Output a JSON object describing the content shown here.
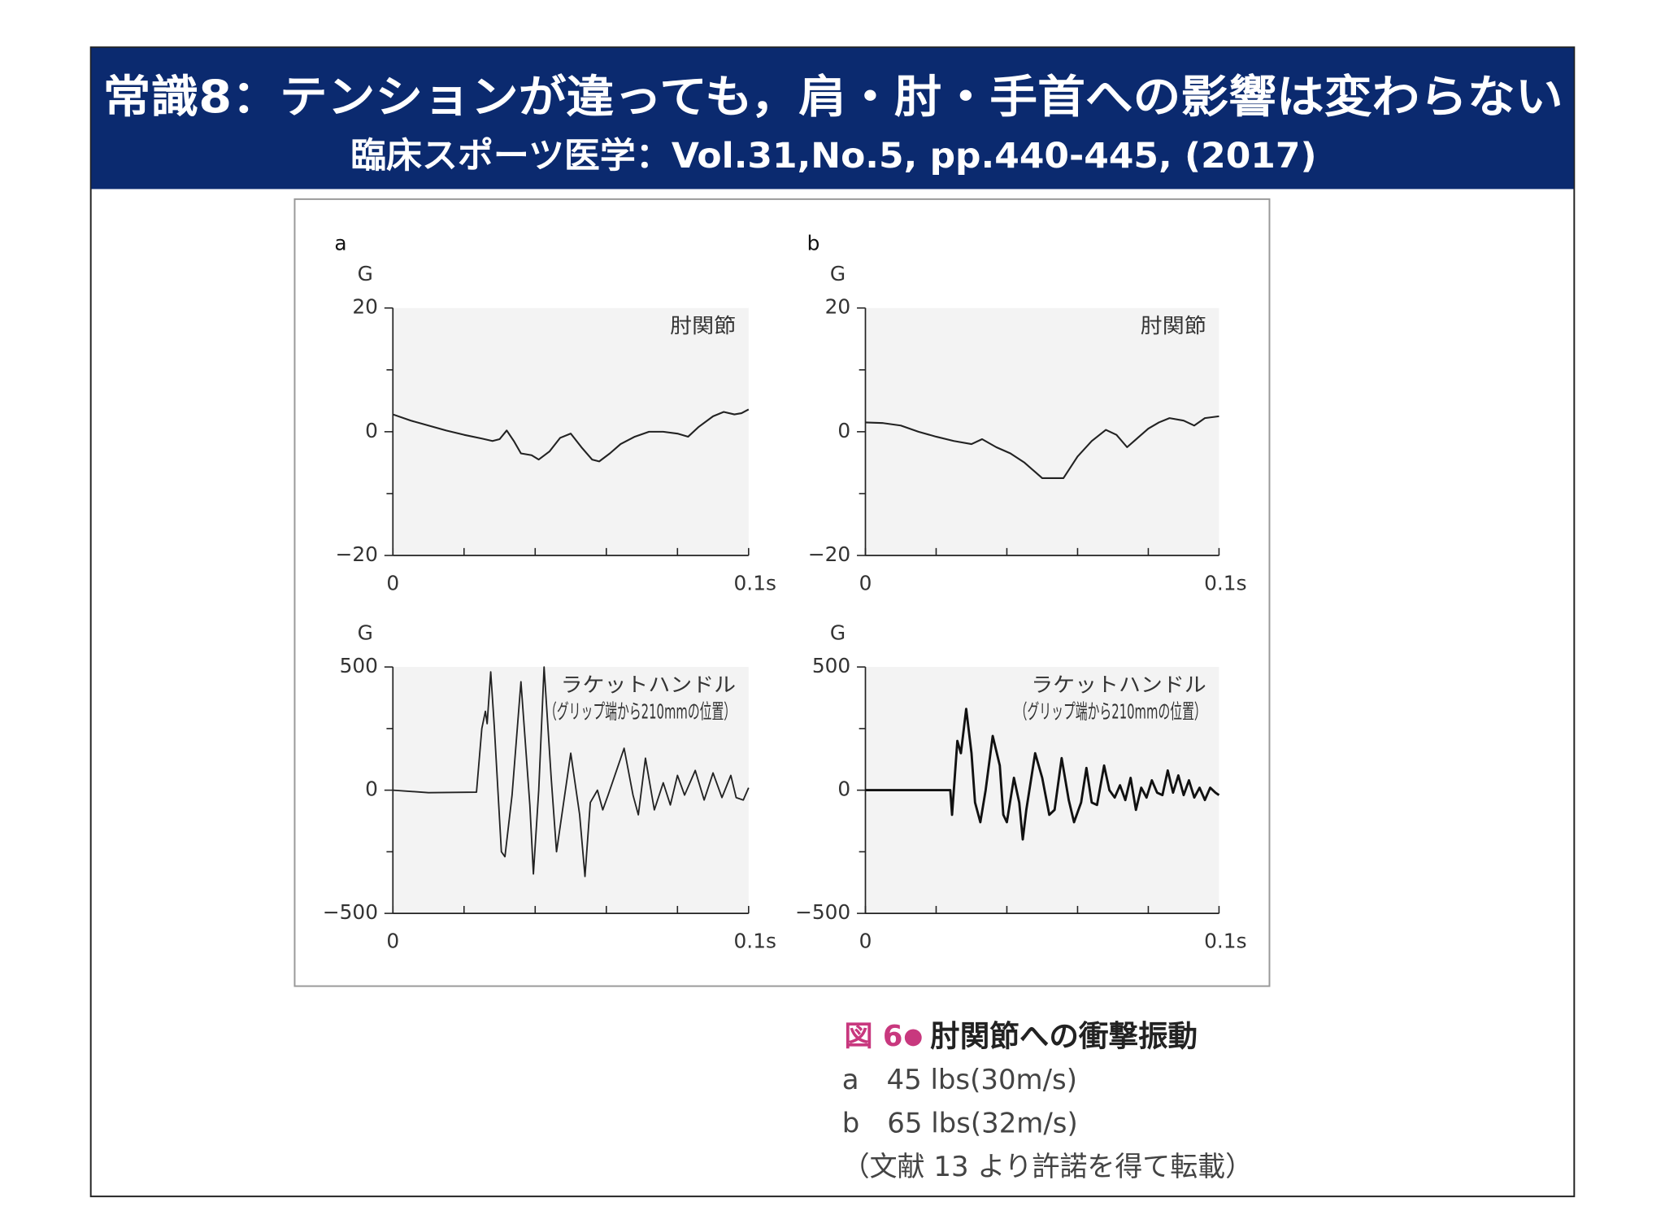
{
  "header": {
    "title": "常識8：テンションが違っても，肩・肘・手首への影響は変わらない",
    "subtitle": "臨床スポーツ医学：Vol.31,No.5, pp.440-445, (2017)"
  },
  "chart_data": [
    {
      "type": "line",
      "panel": "a",
      "ylabel": "G",
      "annotations": [
        "肘関節"
      ],
      "x": [
        0,
        0.005,
        0.01,
        0.015,
        0.02,
        0.025,
        0.028,
        0.03,
        0.032,
        0.034,
        0.036,
        0.039,
        0.041,
        0.044,
        0.047,
        0.05,
        0.053,
        0.056,
        0.058,
        0.061,
        0.064,
        0.068,
        0.072,
        0.076,
        0.08,
        0.083,
        0.086,
        0.09,
        0.093,
        0.096,
        0.098,
        0.1
      ],
      "series": [
        {
          "color": "#222222",
          "values": [
            2.8,
            1.8,
            1.0,
            0.2,
            -0.5,
            -1.1,
            -1.5,
            -1.2,
            0.2,
            -1.5,
            -3.5,
            -3.8,
            -4.5,
            -3.2,
            -1.0,
            -0.3,
            -2.5,
            -4.5,
            -4.8,
            -3.5,
            -2.0,
            -0.8,
            0,
            0,
            -0.3,
            -0.8,
            0.8,
            2.5,
            3.2,
            2.8,
            3.0,
            3.6
          ]
        }
      ],
      "xlim": [
        0,
        0.1
      ],
      "xticks": [
        0,
        {
          "value": 0.1,
          "label": "0.1s"
        }
      ],
      "xminor": [
        0.02,
        0.04,
        0.06,
        0.08
      ],
      "ylim": [
        -20,
        20
      ],
      "yticks": [
        {
          "value": -20,
          "label": "−20"
        },
        0,
        20
      ],
      "yminor": [
        -10,
        10
      ]
    },
    {
      "type": "line",
      "panel": "b",
      "ylabel": "G",
      "annotations": [
        "肘関節"
      ],
      "x": [
        0,
        0.005,
        0.01,
        0.015,
        0.02,
        0.025,
        0.03,
        0.033,
        0.037,
        0.041,
        0.045,
        0.048,
        0.05,
        0.056,
        0.06,
        0.064,
        0.068,
        0.071,
        0.074,
        0.077,
        0.08,
        0.083,
        0.086,
        0.09,
        0.093,
        0.096,
        0.1
      ],
      "series": [
        {
          "color": "#222222",
          "values": [
            1.5,
            1.4,
            1.0,
            0,
            -0.8,
            -1.5,
            -2.0,
            -1.2,
            -2.5,
            -3.5,
            -5.0,
            -6.5,
            -7.5,
            -7.5,
            -4.0,
            -1.5,
            0.3,
            -0.5,
            -2.5,
            -1.0,
            0.5,
            1.5,
            2.2,
            1.8,
            1.0,
            2.2,
            2.5
          ]
        }
      ],
      "xlim": [
        0,
        0.1
      ],
      "xticks": [
        0,
        {
          "value": 0.1,
          "label": "0.1s"
        }
      ],
      "xminor": [
        0.02,
        0.04,
        0.06,
        0.08
      ],
      "ylim": [
        -20,
        20
      ],
      "yticks": [
        {
          "value": -20,
          "label": "−20"
        },
        0,
        20
      ],
      "yminor": [
        -10,
        10
      ]
    },
    {
      "type": "line",
      "ylabel": "G",
      "annotations": [
        "ラケットハンドル",
        "（グリップ端から210mmの位置）"
      ],
      "x": [
        0,
        0.01,
        0.0235,
        0.025,
        0.026,
        0.0265,
        0.0275,
        0.0285,
        0.0305,
        0.0315,
        0.0335,
        0.036,
        0.0385,
        0.0395,
        0.041,
        0.0425,
        0.0445,
        0.046,
        0.0475,
        0.05,
        0.0525,
        0.054,
        0.0555,
        0.0575,
        0.059,
        0.0605,
        0.065,
        0.0675,
        0.069,
        0.071,
        0.0735,
        0.076,
        0.078,
        0.08,
        0.082,
        0.085,
        0.0875,
        0.09,
        0.0925,
        0.095,
        0.0965,
        0.0985,
        0.1
      ],
      "series": [
        {
          "color": "#222222",
          "values": [
            0,
            -10,
            -8,
            250,
            320,
            270,
            480,
            260,
            -250,
            -270,
            -20,
            440,
            -60,
            -340,
            0,
            500,
            50,
            -250,
            -100,
            150,
            -100,
            -350,
            -50,
            0,
            -80,
            -20,
            170,
            -20,
            -100,
            130,
            -80,
            30,
            -60,
            60,
            -20,
            80,
            -40,
            70,
            -30,
            60,
            -30,
            -40,
            10
          ]
        }
      ],
      "xlim": [
        0,
        0.1
      ],
      "xticks": [
        0,
        {
          "value": 0.1,
          "label": "0.1s"
        }
      ],
      "xminor": [
        0.02,
        0.04,
        0.06,
        0.08
      ],
      "ylim": [
        -500,
        500
      ],
      "yticks": [
        {
          "value": -500,
          "label": "−500"
        },
        0,
        500
      ],
      "yminor": [
        -250,
        250
      ]
    },
    {
      "type": "line",
      "ylabel": "G",
      "annotations": [
        "ラケットハンドル",
        "（グリップ端から210mmの位置）"
      ],
      "x": [
        0,
        0.01,
        0.024,
        0.0245,
        0.026,
        0.027,
        0.0285,
        0.03,
        0.031,
        0.0325,
        0.034,
        0.036,
        0.038,
        0.039,
        0.04,
        0.042,
        0.0435,
        0.0445,
        0.0455,
        0.048,
        0.05,
        0.052,
        0.0535,
        0.0555,
        0.0575,
        0.059,
        0.061,
        0.0625,
        0.064,
        0.0655,
        0.0675,
        0.069,
        0.0705,
        0.072,
        0.0735,
        0.075,
        0.0765,
        0.078,
        0.0795,
        0.081,
        0.0825,
        0.084,
        0.0855,
        0.087,
        0.0885,
        0.09,
        0.0915,
        0.093,
        0.0945,
        0.096,
        0.0975,
        0.099,
        0.1
      ],
      "series": [
        {
          "color": "#111111",
          "values": [
            0,
            0,
            0,
            -100,
            200,
            150,
            330,
            150,
            -50,
            -130,
            0,
            220,
            100,
            -100,
            -130,
            50,
            -50,
            -200,
            -80,
            150,
            50,
            -100,
            -80,
            130,
            -40,
            -130,
            -50,
            90,
            -50,
            -60,
            100,
            0,
            -30,
            20,
            -40,
            50,
            -80,
            10,
            -30,
            40,
            -10,
            -20,
            80,
            -10,
            60,
            -20,
            40,
            -30,
            10,
            -40,
            10,
            -10,
            -20
          ]
        }
      ],
      "xlim": [
        0,
        0.1
      ],
      "xticks": [
        0,
        {
          "value": 0.1,
          "label": "0.1s"
        }
      ],
      "xminor": [
        0.02,
        0.04,
        0.06,
        0.08
      ],
      "ylim": [
        -500,
        500
      ],
      "yticks": [
        {
          "value": -500,
          "label": "−500"
        },
        0,
        500
      ],
      "yminor": [
        -250,
        250
      ]
    }
  ],
  "caption": {
    "figure": "図 6",
    "title": "肘関節への衝撃振動",
    "lines": [
      "a　45 lbs(30m/s)",
      "b　65 lbs(32m/s)",
      "（文献 13 より許諾を得て転載）"
    ]
  }
}
